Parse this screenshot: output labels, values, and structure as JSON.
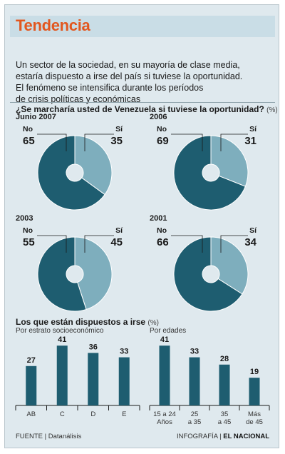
{
  "header": {
    "title": "Tendencia"
  },
  "intro_lines": [
    "Un sector de la sociedad, en su mayoría de clase media,",
    "estaría dispuesto a irse del país si tuviese la oportunidad.",
    "El fenómeno se intensifica durante los períodos",
    "de crisis políticas y económicas"
  ],
  "colors": {
    "no": "#1e5d70",
    "si": "#7eaebd",
    "bar": "#1e5d70",
    "accent": "#e2571f"
  },
  "chart_data": [
    {
      "type": "pie",
      "title": "¿Se marcharía usted de Venezuela si tuviese la oportunidad?",
      "unit": "(%)",
      "panels": [
        {
          "label": "Junio 2007",
          "slices": [
            {
              "name": "No",
              "value": 65
            },
            {
              "name": "Sí",
              "value": 35
            }
          ]
        },
        {
          "label": "2006",
          "slices": [
            {
              "name": "No",
              "value": 69
            },
            {
              "name": "Sí",
              "value": 31
            }
          ]
        },
        {
          "label": "2003",
          "slices": [
            {
              "name": "No",
              "value": 55
            },
            {
              "name": "Sí",
              "value": 45
            }
          ]
        },
        {
          "label": "2001",
          "slices": [
            {
              "name": "No",
              "value": 66
            },
            {
              "name": "Sí",
              "value": 34
            }
          ]
        }
      ]
    },
    {
      "type": "bar",
      "title": "Los que están dispuestos a irse",
      "unit": "(%)",
      "subtitle": "Por estrato socioeconómico",
      "categories": [
        "AB",
        "C",
        "D",
        "E"
      ],
      "values": [
        27,
        41,
        36,
        33
      ],
      "ylim": [
        0,
        45
      ]
    },
    {
      "type": "bar",
      "subtitle": "Por edades",
      "categories": [
        "15 a 24 Años",
        "25 a 35",
        "35 a 45",
        "Más de 45"
      ],
      "values": [
        41,
        33,
        28,
        19
      ],
      "ylim": [
        0,
        45
      ]
    }
  ],
  "footer": {
    "source": "FUENTE | Datanálisis",
    "credit_prefix": "INFOGRAFÍA |",
    "credit_brand": "EL NACIONAL"
  }
}
